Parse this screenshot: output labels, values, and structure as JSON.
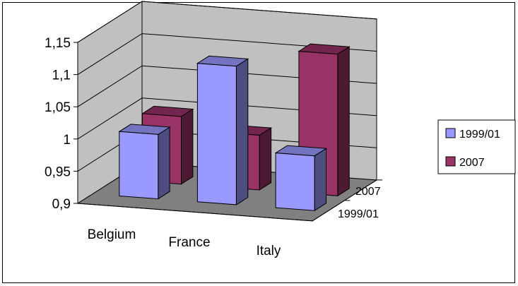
{
  "chart_data": {
    "type": "bar",
    "subtype": "3d-clustered-column",
    "title": "",
    "xlabel": "",
    "ylabel": "",
    "categories": [
      "Belgium",
      "France",
      "Italy"
    ],
    "series": [
      {
        "name": "1999/01",
        "values": [
          1.0,
          1.115,
          0.985
        ],
        "color": "#9999ff"
      },
      {
        "name": "2007",
        "values": [
          1.005,
          0.985,
          1.12
        ],
        "color": "#993366"
      }
    ],
    "ylim": [
      0.9,
      1.15
    ],
    "yticks": [
      "0,9",
      "0,95",
      "1",
      "1,05",
      "1,1",
      "1,15"
    ],
    "depth_labels": [
      "2007",
      "1999/01"
    ],
    "grid": true,
    "legend": "right",
    "wall_color": "#c0c0c0",
    "floor_color": "#808080"
  }
}
